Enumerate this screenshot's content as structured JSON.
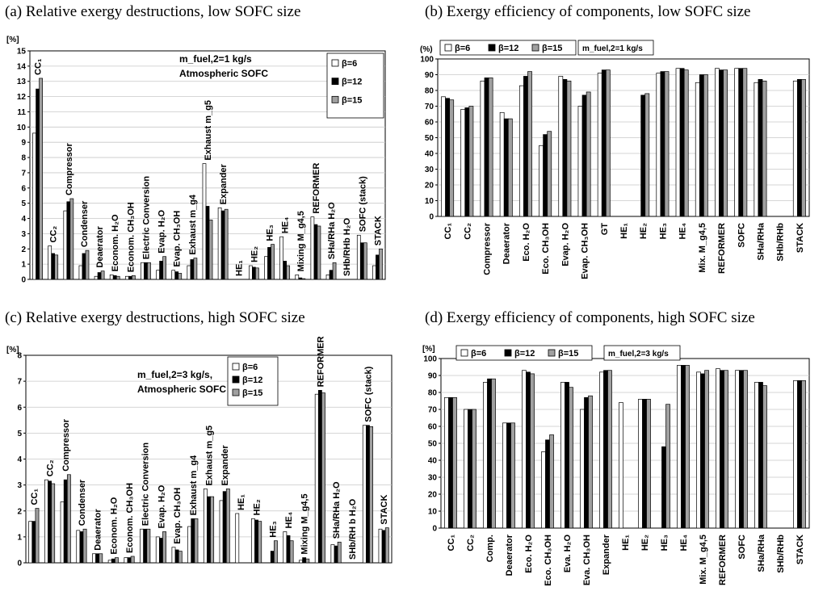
{
  "colors": {
    "b6": "#ffffff",
    "b12": "#000000",
    "b15": "#a0a0a0",
    "grid": "#c8c8c8",
    "plot_bg": "#ffffff"
  },
  "chart_data": [
    {
      "id": "a",
      "type": "bar",
      "title": "(a) Relative exergy destructions, low SOFC size",
      "ylabel": "[%]",
      "ylim": [
        0,
        15
      ],
      "yticks": [
        0,
        1,
        2,
        3,
        4,
        5,
        6,
        7,
        8,
        9,
        10,
        11,
        12,
        13,
        14,
        15
      ],
      "grid": true,
      "annotation": [
        "m_fuel,2=1 kg/s",
        "Atmospheric SOFC"
      ],
      "legend_position": "top-right",
      "series": [
        {
          "name": "β=6",
          "values": [
            9.6,
            2.2,
            4.5,
            0.9,
            0.2,
            0.3,
            0.2,
            1.1,
            0.6,
            0.6,
            0.9,
            7.6,
            4.7,
            0,
            0.9,
            1.5,
            2.8,
            0.3,
            4.1,
            0.3,
            0,
            2.9,
            0.9
          ]
        },
        {
          "name": "β=12",
          "values": [
            12.5,
            1.7,
            5.1,
            1.7,
            0.45,
            0.25,
            0.2,
            1.1,
            1.2,
            0.5,
            1.3,
            4.8,
            4.5,
            0,
            0.8,
            2.1,
            1.2,
            0.1,
            3.6,
            0.6,
            0,
            2.4,
            1.6
          ]
        },
        {
          "name": "β=15",
          "values": [
            13.2,
            1.6,
            5.3,
            1.9,
            0.55,
            0.2,
            0.25,
            1.1,
            1.5,
            0.4,
            1.4,
            3.9,
            4.6,
            0,
            0.75,
            2.3,
            0.9,
            0.05,
            3.5,
            1.1,
            0,
            2.4,
            2.0
          ]
        }
      ],
      "bar_labels": [
        "CC₁",
        "CC₂",
        "Compressor",
        "Condenser",
        "Deaerator",
        "Econom. H₂O",
        "Econom. CH₃OH",
        "Electric Conversion",
        "Evap. H₂O",
        "Evap. CH₃OH",
        "Exhaust m_g4",
        "Exhaust m_g5",
        "Expander",
        "HE₁",
        "HE₂",
        "HE₃",
        "HE₄",
        "Mixing  M_g4,5",
        "REFORMER",
        "SHa/RHa H₂O",
        "SHb/RHb H₂O",
        "SOFC (stack)",
        "STACK"
      ]
    },
    {
      "id": "b",
      "type": "bar",
      "title": "(b) Exergy efficiency of components, low SOFC size",
      "ylabel": "(%)",
      "ylim": [
        0,
        100
      ],
      "yticks": [
        0,
        10,
        20,
        30,
        40,
        50,
        60,
        70,
        80,
        90,
        100
      ],
      "grid": true,
      "annotation": [
        "m_fuel,2=1 kg/s"
      ],
      "legend_position": "top",
      "series": [
        {
          "name": "β=6",
          "values": [
            76,
            68,
            86,
            66,
            83,
            45,
            89,
            70,
            91,
            0,
            0,
            91,
            94,
            85,
            94,
            94,
            85,
            0,
            86
          ]
        },
        {
          "name": "β=12",
          "values": [
            75,
            69,
            88,
            62,
            89,
            52,
            87,
            77,
            93,
            0,
            77,
            92,
            94,
            90,
            93,
            94,
            87,
            0,
            87
          ]
        },
        {
          "name": "β=15",
          "values": [
            74,
            70,
            88,
            62,
            92,
            54,
            86,
            79,
            93,
            0,
            78,
            92,
            93,
            90,
            93,
            94,
            86,
            0,
            87
          ]
        }
      ],
      "categories": [
        "CC₁",
        "CC₂",
        "Compressor",
        "Deaerator",
        "Eco. H₂O",
        "Eco. CH₃OH",
        "Evap. H₂O",
        "Evap. CH₃OH",
        "GT",
        "HE₁",
        "HE₂",
        "HE₃",
        "HE₄",
        "Mix. M_g4,5",
        "REFORMER",
        "SOFC",
        "SHa/RHa",
        "SHb/RHb",
        "STACK"
      ]
    },
    {
      "id": "c",
      "type": "bar",
      "title": "(c) Relative exergy destructions, high SOFC size",
      "ylabel": "[%]",
      "ylim": [
        0,
        8
      ],
      "yticks": [
        0,
        1,
        2,
        3,
        4,
        5,
        6,
        7,
        8
      ],
      "grid": true,
      "annotation": [
        "m_fuel,2=3 kg/s,",
        "Atmospheric SOFC"
      ],
      "legend_position": "top-right",
      "series": [
        {
          "name": "β=6",
          "values": [
            1.6,
            3.2,
            2.35,
            1.25,
            0.35,
            0.1,
            0.2,
            1.3,
            1.0,
            0.6,
            1.4,
            2.85,
            2.4,
            1.9,
            1.7,
            0,
            1.2,
            0.1,
            6.5,
            0.7,
            0,
            5.3,
            1.3
          ]
        },
        {
          "name": "β=12",
          "values": [
            1.6,
            3.15,
            3.2,
            1.2,
            0.35,
            0.15,
            0.2,
            1.3,
            0.95,
            0.5,
            1.7,
            2.55,
            2.75,
            0,
            1.65,
            0.45,
            1.05,
            0.2,
            6.65,
            0.65,
            0,
            5.3,
            1.25
          ]
        },
        {
          "name": "β=15",
          "values": [
            2.1,
            3.05,
            3.4,
            1.3,
            0.35,
            0.2,
            0.25,
            1.3,
            1.2,
            0.45,
            1.7,
            2.55,
            2.85,
            0,
            1.6,
            0.85,
            0.85,
            0.15,
            6.55,
            0.8,
            0,
            5.25,
            1.35
          ]
        }
      ],
      "bar_labels": [
        "CC₁",
        "CC₂",
        "Compressor",
        "Condenser",
        "Deaerator",
        "Econom. H₂O",
        "Econom. CH₃OH",
        "Electric Conversion",
        "Evap. H₂O",
        "Evap. CH₃OH",
        "Exhaust m_g4",
        "Exhaust m_g5",
        "Expander",
        "HE₁",
        "HE₂",
        "HE₃",
        "HE₄",
        "Mixing  M_g4,5",
        "REFORMER",
        "SHa/RHa H₂O",
        "SHb/RH b H₂O",
        "SOFC (stack)",
        "STACK"
      ]
    },
    {
      "id": "d",
      "type": "bar",
      "title": "(d) Exergy efficiency of components, high SOFC size",
      "ylabel": "[%]",
      "ylim": [
        0,
        100
      ],
      "yticks": [
        0,
        10,
        20,
        30,
        40,
        50,
        60,
        70,
        80,
        90,
        100
      ],
      "grid": true,
      "annotation": [
        "m_fuel,2=3 kg/s"
      ],
      "legend_position": "top",
      "series": [
        {
          "name": "β=6",
          "values": [
            77,
            70,
            86,
            62,
            93,
            45,
            86,
            70,
            92,
            74,
            76,
            0,
            96,
            92,
            94,
            93,
            86,
            0,
            87
          ]
        },
        {
          "name": "β=12",
          "values": [
            77,
            70,
            88,
            62,
            92,
            52,
            86,
            77,
            93,
            0,
            76,
            48,
            96,
            91,
            93,
            93,
            86,
            0,
            87
          ]
        },
        {
          "name": "β=15",
          "values": [
            77,
            70,
            88,
            62,
            91,
            55,
            83,
            78,
            93,
            0,
            76,
            73,
            96,
            93,
            93,
            93,
            84,
            0,
            87
          ]
        }
      ],
      "categories": [
        "CC₁",
        "CC₂",
        "Comp.",
        "Deaerator",
        "Eco. H₂O",
        "Eco. CH₃OH",
        "Eva. H₂O",
        "Eva. CH₃OH",
        "Expander",
        "HE₁",
        "HE₂",
        "HE₃",
        "HE₄",
        "Mix. M_g4,5",
        "REFORMER",
        "SOFC",
        "SHa/RHa",
        "SHb/RHb",
        "STACK"
      ]
    }
  ]
}
